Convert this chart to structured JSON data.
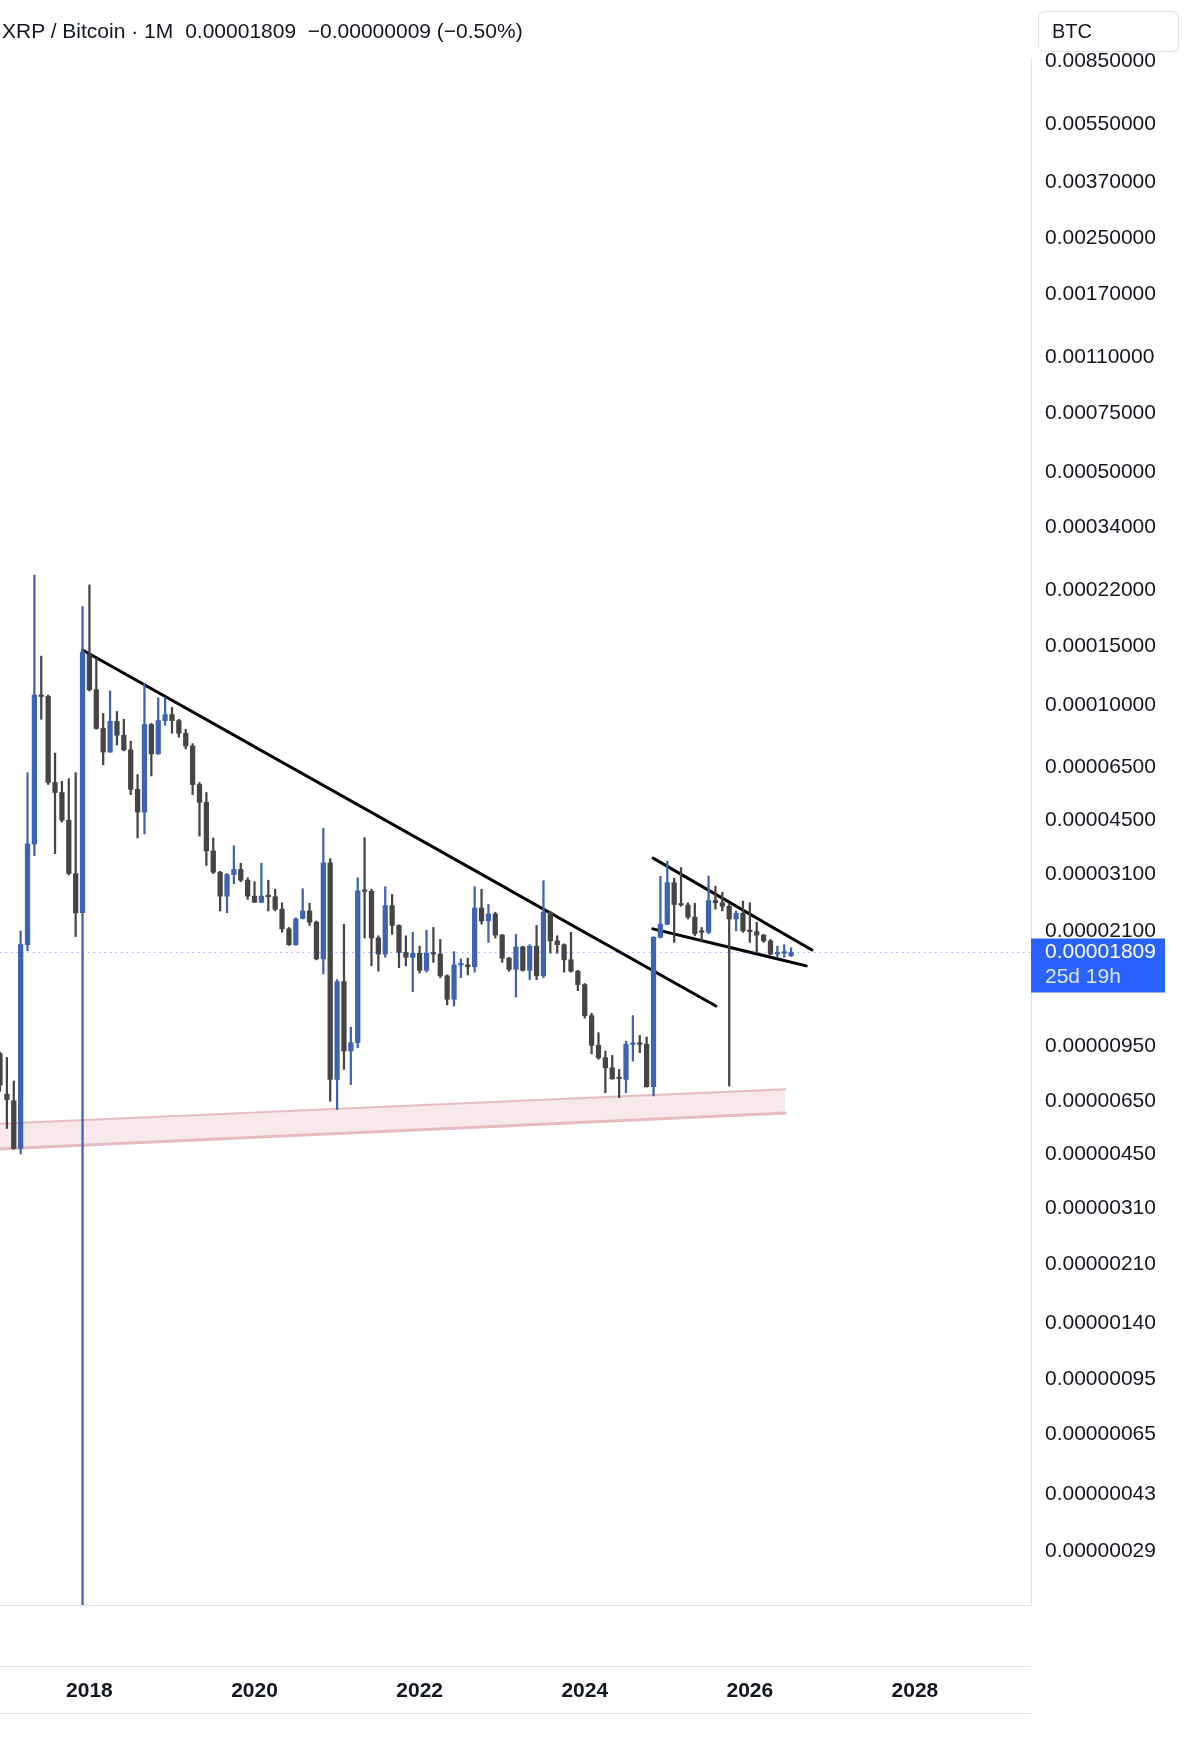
{
  "chart_data": {
    "type": "candlestick",
    "title": "XRP / Bitcoin · 1M",
    "subtitle": "0.00001809  −0.00000009 (−0.50%)",
    "ylabel": "BTC",
    "log": true,
    "xlim": [
      "2016-12-01",
      "2029-05-28"
    ],
    "xticks": [
      "2018",
      "2020",
      "2022",
      "2024",
      "2026",
      "2028"
    ],
    "ylim": [
      2e-07,
      0.0087
    ],
    "yticks": [
      {
        "value": 0.0085,
        "label": "0.00850000"
      },
      {
        "value": 0.0055,
        "label": "0.00550000"
      },
      {
        "value": 0.0037,
        "label": "0.00370000"
      },
      {
        "value": 0.0025,
        "label": "0.00250000"
      },
      {
        "value": 0.0017,
        "label": "0.00170000"
      },
      {
        "value": 0.0011,
        "label": "0.00110000"
      },
      {
        "value": 0.00075,
        "label": "0.00075000"
      },
      {
        "value": 0.0005,
        "label": "0.00050000"
      },
      {
        "value": 0.00034,
        "label": "0.00034000"
      },
      {
        "value": 0.00022,
        "label": "0.00022000"
      },
      {
        "value": 0.00015,
        "label": "0.00015000"
      },
      {
        "value": 0.0001,
        "label": "0.00010000"
      },
      {
        "value": 6.5e-05,
        "label": "0.00006500"
      },
      {
        "value": 4.5e-05,
        "label": "0.00004500"
      },
      {
        "value": 3.1e-05,
        "label": "0.00003100"
      },
      {
        "value": 2.1e-05,
        "label": "0.00002100"
      },
      {
        "value": 9.5e-06,
        "label": "0.00000950"
      },
      {
        "value": 6.5e-06,
        "label": "0.00000650"
      },
      {
        "value": 4.5e-06,
        "label": "0.00000450"
      },
      {
        "value": 3.1e-06,
        "label": "0.00000310"
      },
      {
        "value": 2.1e-06,
        "label": "0.00000210"
      },
      {
        "value": 1.4e-06,
        "label": "0.00000140"
      },
      {
        "value": 9.5e-07,
        "label": "0.00000095"
      },
      {
        "value": 6.5e-07,
        "label": "0.00000065"
      },
      {
        "value": 4.3e-07,
        "label": "0.00000043"
      },
      {
        "value": 2.9e-07,
        "label": "0.00000029"
      }
    ],
    "x": [
      "2016-12",
      "2017-01",
      "2017-02",
      "2017-03",
      "2017-04",
      "2017-05",
      "2017-06",
      "2017-07",
      "2017-08",
      "2017-09",
      "2017-10",
      "2017-11",
      "2017-12",
      "2018-01",
      "2018-02",
      "2018-03",
      "2018-04",
      "2018-05",
      "2018-06",
      "2018-07",
      "2018-08",
      "2018-09",
      "2018-10",
      "2018-11",
      "2018-12",
      "2019-01",
      "2019-02",
      "2019-03",
      "2019-04",
      "2019-05",
      "2019-06",
      "2019-07",
      "2019-08",
      "2019-09",
      "2019-10",
      "2019-11",
      "2019-12",
      "2020-01",
      "2020-02",
      "2020-03",
      "2020-04",
      "2020-05",
      "2020-06",
      "2020-07",
      "2020-08",
      "2020-09",
      "2020-10",
      "2020-11",
      "2020-12",
      "2021-01",
      "2021-02",
      "2021-03",
      "2021-04",
      "2021-05",
      "2021-06",
      "2021-07",
      "2021-08",
      "2021-09",
      "2021-10",
      "2021-11",
      "2021-12",
      "2022-01",
      "2022-02",
      "2022-03",
      "2022-04",
      "2022-05",
      "2022-06",
      "2022-07",
      "2022-08",
      "2022-09",
      "2022-10",
      "2022-11",
      "2022-12",
      "2023-01",
      "2023-02",
      "2023-03",
      "2023-04",
      "2023-05",
      "2023-06",
      "2023-07",
      "2023-08",
      "2023-09",
      "2023-10",
      "2023-11",
      "2023-12",
      "2024-01",
      "2024-02",
      "2024-03",
      "2024-04",
      "2024-05",
      "2024-06",
      "2024-07",
      "2024-08",
      "2024-09",
      "2024-10",
      "2024-11",
      "2024-12",
      "2025-01",
      "2025-02",
      "2025-03",
      "2025-04",
      "2025-05",
      "2025-06",
      "2025-07",
      "2025-08",
      "2025-09",
      "2025-10",
      "2025-11",
      "2025-12",
      "2026-01",
      "2026-02",
      "2026-03",
      "2026-04",
      "2026-05",
      "2026-06",
      "2026-07"
    ],
    "ohlc": [
      [
        9e-06,
        9.1e-06,
        6.95e-06,
        7.24e-06
      ],
      [
        6.8e-06,
        8.77e-06,
        5.37e-06,
        6.55e-06
      ],
      [
        6.5e-06,
        7.45e-06,
        4.65e-06,
        4.68e-06
      ],
      [
        4.68e-06,
        2.1e-05,
        4.5e-06,
        1.91e-05
      ],
      [
        1.91e-05,
        6.26e-05,
        1.83e-05,
        3.83e-05
      ],
      [
        3.83e-05,
        0.000245,
        3.53e-05,
        0.000107
      ],
      [
        0.000107,
        0.00014,
        9.05e-05,
        0.000106
      ],
      [
        0.000106,
        0.000107,
        5.77e-05,
        5.85e-05
      ],
      [
        5.85e-05,
        7.17e-05,
        3.58e-05,
        5.46e-05
      ],
      [
        5.46e-05,
        5.9e-05,
        4.45e-05,
        4.51e-05
      ],
      [
        4.51e-05,
        6.01e-05,
        3.09e-05,
        3.12e-05
      ],
      [
        3.12e-05,
        6.26e-05,
        2.02e-05,
        2.38e-05
      ],
      [
        2.38e-05,
        0.000197,
        2e-07,
        0.000144
      ],
      [
        0.000142,
        0.000229,
        0.00011,
        0.000111
      ],
      [
        0.000111,
        0.000138,
        8.45e-05,
        8.5e-05
      ],
      [
        8.5e-05,
        9.42e-05,
        6.61e-05,
        7.22e-05
      ],
      [
        7.22e-05,
        0.00011,
        7.2e-05,
        8.92e-05
      ],
      [
        8.92e-05,
        9.55e-05,
        7.58e-05,
        8.11e-05
      ],
      [
        8.11e-05,
        9.05e-05,
        7.28e-05,
        7.33e-05
      ],
      [
        7.33e-05,
        7.79e-05,
        5.38e-05,
        5.58e-05
      ],
      [
        5.58e-05,
        6.18e-05,
        3.99e-05,
        4.77e-05
      ],
      [
        4.77e-05,
        0.000116,
        4.1e-05,
        8.73e-05
      ],
      [
        8.73e-05,
        8.8e-05,
        6.12e-05,
        7.13e-05
      ],
      [
        7.13e-05,
        0.000105,
        7.1e-05,
        8.97e-05
      ],
      [
        8.97e-05,
        0.000105,
        8.69e-05,
        9.35e-05
      ],
      [
        9.35e-05,
        9.82e-05,
        8.22e-05,
        8.97e-05
      ],
      [
        8.97e-05,
        9.05e-05,
        8e-05,
        8.22e-05
      ],
      [
        8.22e-05,
        8.45e-05,
        7.38e-05,
        7.53e-05
      ],
      [
        7.53e-05,
        7.65e-05,
        5.38e-05,
        5.77e-05
      ],
      [
        5.77e-05,
        5.85e-05,
        4.04e-05,
        5.1e-05
      ],
      [
        5.1e-05,
        5.46e-05,
        3.3e-05,
        3.65e-05
      ],
      [
        3.65e-05,
        3.99e-05,
        3.12e-05,
        3.15e-05
      ],
      [
        3.15e-05,
        3.17e-05,
        2.41e-05,
        2.67e-05
      ],
      [
        2.67e-05,
        3.12e-05,
        2.38e-05,
        3.1e-05
      ],
      [
        3.1e-05,
        3.78e-05,
        2.91e-05,
        3.21e-05
      ],
      [
        3.21e-05,
        3.35e-05,
        2.95e-05,
        2.98e-05
      ],
      [
        2.98e-05,
        3.03e-05,
        2.61e-05,
        2.67e-05
      ],
      [
        2.67e-05,
        2.95e-05,
        2.55e-05,
        2.56e-05
      ],
      [
        2.56e-05,
        3.35e-05,
        2.55e-05,
        2.67e-05
      ],
      [
        2.67e-05,
        2.98e-05,
        2.41e-05,
        2.66e-05
      ],
      [
        2.66e-05,
        2.8e-05,
        2.41e-05,
        2.44e-05
      ],
      [
        2.44e-05,
        2.55e-05,
        2.08e-05,
        2.13e-05
      ],
      [
        2.13e-05,
        2.15e-05,
        1.9e-05,
        1.91e-05
      ],
      [
        1.91e-05,
        2.3e-05,
        1.9e-05,
        2.28e-05
      ],
      [
        2.29e-05,
        2.81e-05,
        2.28e-05,
        2.41e-05
      ],
      [
        2.41e-05,
        2.54e-05,
        2.18e-05,
        2.23e-05
      ],
      [
        2.23e-05,
        2.25e-05,
        1.72e-05,
        1.73e-05
      ],
      [
        1.73e-05,
        4.26e-05,
        1.56e-05,
        3.36e-05
      ],
      [
        3.36e-05,
        3.46e-05,
        6.48e-06,
        7.53e-06
      ],
      [
        7.53e-06,
        1.5e-05,
        6.12e-06,
        1.48e-05
      ],
      [
        1.48e-05,
        2.2e-05,
        8.07e-06,
        9.16e-06
      ],
      [
        9.16e-06,
        1.08e-05,
        7.27e-06,
        9.71e-06
      ],
      [
        9.71e-06,
        3.03e-05,
        9.38e-06,
        2.77e-05
      ],
      [
        2.77e-05,
        4e-05,
        2e-05,
        2.76e-05
      ],
      [
        2.76e-05,
        2.8e-05,
        1.65e-05,
        2e-05
      ],
      [
        2e-05,
        2.03e-05,
        1.59e-05,
        1.79e-05
      ],
      [
        1.79e-05,
        2.85e-05,
        1.75e-05,
        2.5e-05
      ],
      [
        2.5e-05,
        2.7e-05,
        2.05e-05,
        2.18e-05
      ],
      [
        2.18e-05,
        2.19e-05,
        1.63e-05,
        1.81e-05
      ],
      [
        1.81e-05,
        2.03e-05,
        1.65e-05,
        1.75e-05
      ],
      [
        1.75e-05,
        2.08e-05,
        1.38e-05,
        1.8e-05
      ],
      [
        1.8e-05,
        1.89e-05,
        1.57e-05,
        1.6e-05
      ],
      [
        1.6e-05,
        2.11e-05,
        1.58e-05,
        1.8e-05
      ],
      [
        1.8e-05,
        2.15e-05,
        1.69e-05,
        1.79e-05
      ],
      [
        1.79e-05,
        1.98e-05,
        1.52e-05,
        1.54e-05
      ],
      [
        1.54e-05,
        1.55e-05,
        1.26e-05,
        1.31e-05
      ],
      [
        1.31e-05,
        1.82e-05,
        1.25e-05,
        1.66e-05
      ],
      [
        1.66e-05,
        1.73e-05,
        1.52e-05,
        1.67e-05
      ],
      [
        1.66e-05,
        1.74e-05,
        1.55e-05,
        1.64e-05
      ],
      [
        1.64e-05,
        2.85e-05,
        1.58e-05,
        2.46e-05
      ],
      [
        2.46e-05,
        2.8e-05,
        2.2e-05,
        2.25e-05
      ],
      [
        2.25e-05,
        2.52e-05,
        1.94e-05,
        2.36e-05
      ],
      [
        2.36e-05,
        2.39e-05,
        2e-05,
        2.04e-05
      ],
      [
        2.04e-05,
        2.05e-05,
        1.69e-05,
        1.74e-05
      ],
      [
        1.74e-05,
        1.75e-05,
        1.59e-05,
        1.61e-05
      ],
      [
        1.61e-05,
        2.05e-05,
        1.33e-05,
        1.88e-05
      ],
      [
        1.88e-05,
        1.89e-05,
        1.59e-05,
        1.6e-05
      ],
      [
        1.6e-05,
        1.91e-05,
        1.5e-05,
        1.89e-05
      ],
      [
        1.89e-05,
        2.18e-05,
        1.5e-05,
        1.54e-05
      ],
      [
        1.54e-05,
        2.97e-05,
        1.52e-05,
        2.39e-05
      ],
      [
        2.39e-05,
        2.4e-05,
        1.8e-05,
        1.96e-05
      ],
      [
        1.96e-05,
        2.03e-05,
        1.8e-05,
        1.91e-05
      ],
      [
        1.91e-05,
        1.92e-05,
        1.58e-05,
        1.72e-05
      ],
      [
        1.72e-05,
        2.08e-05,
        1.58e-05,
        1.59e-05
      ],
      [
        1.59e-05,
        1.6e-05,
        1.39e-05,
        1.45e-05
      ],
      [
        1.45e-05,
        1.46e-05,
        1.15e-05,
        1.17e-05
      ],
      [
        1.17e-05,
        1.19e-05,
        8.99e-06,
        9.53e-06
      ],
      [
        9.53e-06,
        1.04e-05,
        8.65e-06,
        8.75e-06
      ],
      [
        8.75e-06,
        9.16e-06,
        6.87e-06,
        8.16e-06
      ],
      [
        8.16e-06,
        8.89e-06,
        7.53e-06,
        7.57e-06
      ],
      [
        7.65e-06,
        8.07e-06,
        6.64e-06,
        7.57e-06
      ],
      [
        7.53e-06,
        9.81e-06,
        6.87e-06,
        9.59e-06
      ],
      [
        9.59e-06,
        1.17e-05,
        8.55e-06,
        9.62e-06
      ],
      [
        9.62e-06,
        1.02e-05,
        9.06e-06,
        9.6e-06
      ],
      [
        9.6e-06,
        1.01e-05,
        7.14e-06,
        7.16e-06
      ],
      [
        7.16e-06,
        2.02e-05,
        6.72e-06,
        2.01e-05
      ],
      [
        2.01e-05,
        3.06e-05,
        2e-05,
        2.2e-05
      ],
      [
        2.2e-05,
        3.4e-05,
        2.19e-05,
        2.93e-05
      ],
      [
        2.93e-05,
        3.02e-05,
        1.94e-05,
        2.52e-05
      ],
      [
        2.52e-05,
        3.25e-05,
        2.49e-05,
        2.51e-05
      ],
      [
        2.51e-05,
        2.55e-05,
        2.28e-05,
        2.31e-05
      ],
      [
        2.31e-05,
        2.54e-05,
        2.03e-05,
        2.06e-05
      ],
      [
        2.09e-05,
        2.15e-05,
        1.96e-05,
        2.08e-05
      ],
      [
        2.08e-05,
        3.07e-05,
        2.06e-05,
        2.59e-05
      ],
      [
        2.59e-05,
        2.86e-05,
        2.44e-05,
        2.55e-05
      ],
      [
        2.55e-05,
        2.74e-05,
        2.41e-05,
        2.49e-05
      ],
      [
        2.49e-05,
        2.52e-05,
        7.2e-06,
        2.28e-05
      ],
      [
        2.28e-05,
        2.41e-05,
        2.1e-05,
        2.37e-05
      ],
      [
        2.37e-05,
        2.58e-05,
        2.08e-05,
        2.1e-05
      ],
      [
        2.1e-05,
        2.55e-05,
        1.94e-05,
        2.09e-05
      ],
      [
        2.09e-05,
        2.23e-05,
        1.81e-05,
        2.04e-05
      ],
      [
        2.04e-05,
        2.05e-05,
        1.94e-05,
        1.96e-05
      ],
      [
        1.96e-05,
        1.98e-05,
        1.78e-05,
        1.79e-05
      ],
      [
        1.79e-05,
        1.89e-05,
        1.75e-05,
        1.8e-05
      ],
      [
        1.8e-05,
        1.91e-05,
        1.75e-05,
        1.818e-05
      ],
      [
        1.77e-05,
        1.87e-05,
        1.76e-05,
        1.809e-05
      ]
    ],
    "colors": [
      "#454545",
      "#454545",
      "#454545",
      "#3e63b3",
      "#3e63b3",
      "#3e63b3",
      "#454545",
      "#454545",
      "#454545",
      "#454545",
      "#454545",
      "#454545",
      "#3e63b3",
      "#454545",
      "#454545",
      "#454545",
      "#3e63b3",
      "#454545",
      "#454545",
      "#454545",
      "#454545",
      "#3e63b3",
      "#454545",
      "#3e63b3",
      "#3e63b3",
      "#454545",
      "#454545",
      "#454545",
      "#454545",
      "#454545",
      "#454545",
      "#454545",
      "#454545",
      "#3e63b3",
      "#3e63b3",
      "#454545",
      "#454545",
      "#454545",
      "#3e63b3",
      "#454545",
      "#454545",
      "#454545",
      "#454545",
      "#3e63b3",
      "#3e63b3",
      "#454545",
      "#454545",
      "#3e63b3",
      "#454545",
      "#3e63b3",
      "#454545",
      "#3e63b3",
      "#3e63b3",
      "#454545",
      "#454545",
      "#454545",
      "#3e63b3",
      "#454545",
      "#454545",
      "#454545",
      "#3e63b3",
      "#454545",
      "#3e63b3",
      "#454545",
      "#454545",
      "#454545",
      "#3e63b3",
      "#3e63b3",
      "#454545",
      "#3e63b3",
      "#454545",
      "#3e63b3",
      "#454545",
      "#454545",
      "#454545",
      "#3e63b3",
      "#454545",
      "#3e63b3",
      "#454545",
      "#3e63b3",
      "#454545",
      "#454545",
      "#454545",
      "#454545",
      "#454545",
      "#454545",
      "#454545",
      "#454545",
      "#454545",
      "#454545",
      "#454545",
      "#3e63b3",
      "#3e63b3",
      "#454545",
      "#454545",
      "#3e63b3",
      "#3e63b3",
      "#3e63b3",
      "#454545",
      "#454545",
      "#454545",
      "#454545",
      "#454545",
      "#3e63b3",
      "#454545",
      "#454545",
      "#454545",
      "#3e63b3",
      "#454545",
      "#454545",
      "#454545",
      "#454545",
      "#454545",
      "#3e63b3",
      "#3e63b3",
      "#3e63b3"
    ],
    "series": [
      {
        "type": "line",
        "x": [
          "2017-12-01",
          "2025-08-03"
        ],
        "values": [
          0.000146,
          1.25e-05
        ],
        "color": "#000000"
      },
      {
        "type": "line",
        "x": [
          "2024-10-30",
          "2026-10-02"
        ],
        "values": [
          3.47e-05,
          1.84e-05
        ],
        "color": "#000000"
      },
      {
        "type": "line",
        "x": [
          "2024-10-29",
          "2026-09-07"
        ],
        "values": [
          2.13e-05,
          1.65e-05
        ],
        "color": "#000000"
      },
      {
        "type": "line",
        "x": [
          "2016-12-01",
          "2026-06-05"
        ],
        "values": [
          5.55e-06,
          7.04e-06
        ],
        "lower": [
          4.66e-06,
          5.97e-06
        ],
        "upper": [
          5.55e-06,
          7.04e-06
        ],
        "color": "#e6bcc1"
      },
      {
        "type": "line",
        "x": [
          "2016-12-01",
          "2026-06-05"
        ],
        "values": [
          4.66e-06,
          5.97e-06
        ],
        "color": "#e6bcc1"
      }
    ],
    "ref_lines": [
      {
        "axis": "y",
        "value": 1.809e-05,
        "label": "0.00001809",
        "color": "#2962ff",
        "line_style": "dotted"
      }
    ],
    "annotations": [
      "25d 19h"
    ]
  }
}
